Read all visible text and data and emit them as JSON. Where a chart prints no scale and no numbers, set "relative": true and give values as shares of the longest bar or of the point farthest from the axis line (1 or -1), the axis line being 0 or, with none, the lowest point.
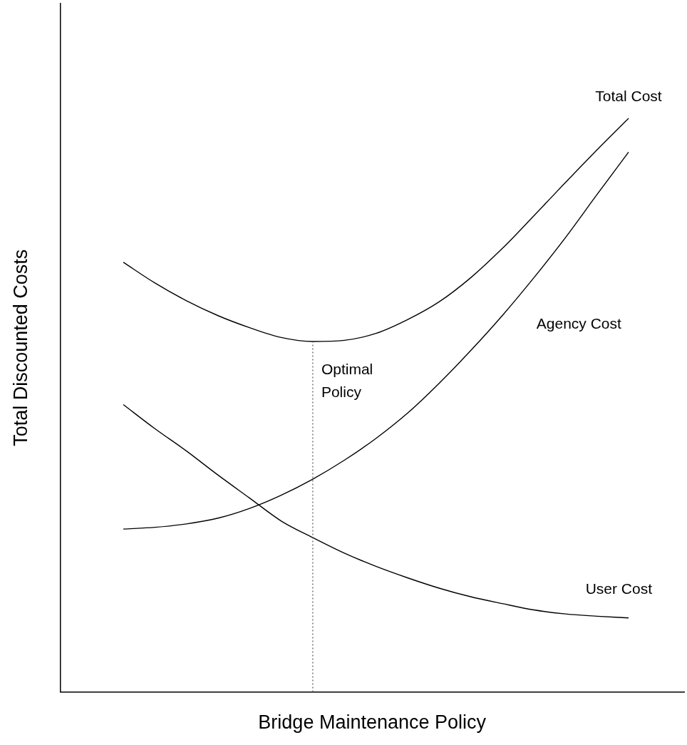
{
  "chart_data": {
    "type": "line",
    "relative": true,
    "xlabel": "Bridge Maintenance Policy",
    "ylabel": "Total Discounted Costs",
    "categories": [
      null,
      null,
      null,
      null,
      null,
      null,
      null,
      null,
      null,
      null,
      null,
      null,
      null,
      null,
      null,
      null,
      null
    ],
    "series": [
      {
        "name": "Total Cost",
        "color": "#000000",
        "values": [
          0.749,
          0.713,
          0.682,
          0.656,
          0.635,
          0.618,
          0.611,
          0.613,
          0.625,
          0.649,
          0.68,
          0.722,
          0.773,
          0.83,
          0.888,
          0.945,
          1
        ]
      },
      {
        "name": "Agency Cost",
        "color": "#000000",
        "values": [
          0.284,
          0.287,
          0.293,
          0.303,
          0.32,
          0.343,
          0.371,
          0.404,
          0.442,
          0.486,
          0.538,
          0.595,
          0.656,
          0.722,
          0.792,
          0.867,
          0.941
        ]
      },
      {
        "name": "User Cost",
        "color": "#000000",
        "values": [
          0.501,
          0.459,
          0.42,
          0.378,
          0.338,
          0.298,
          0.269,
          0.242,
          0.219,
          0.199,
          0.181,
          0.166,
          0.154,
          0.143,
          0.136,
          0.132,
          0.129
        ]
      }
    ],
    "annotations": [
      "Optimal Policy"
    ],
    "legend": false,
    "grid": false,
    "marker": "none",
    "line_style": "solid"
  }
}
